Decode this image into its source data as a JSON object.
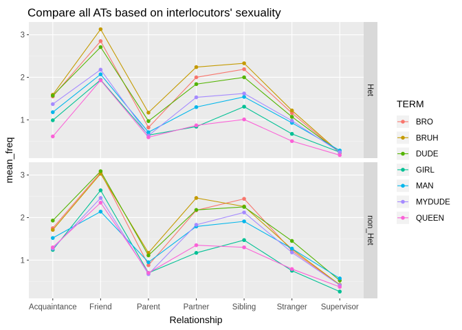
{
  "chart_data": {
    "type": "line",
    "title": "Compare all ATs based on interlocutors' sexuality",
    "xlabel": "Relationship",
    "ylabel": "mean_freq",
    "categories": [
      "Acquaintance",
      "Friend",
      "Parent",
      "Partner",
      "Sibling",
      "Stranger",
      "Supervisor"
    ],
    "yticks": [
      "1",
      "2",
      "3"
    ],
    "ylim": [
      0.1,
      3.3
    ],
    "grid": true,
    "legend": {
      "title": "TERM",
      "position": "right"
    },
    "series_names": [
      "BRO",
      "BRUH",
      "DUDE",
      "GIRL",
      "MAN",
      "MYDUDE",
      "QUEEN"
    ],
    "colors": [
      "#F8766D",
      "#C49A00",
      "#53B400",
      "#00C094",
      "#00B6EB",
      "#A58AFF",
      "#FB61D7"
    ],
    "panels": [
      {
        "label": "Het",
        "series": [
          {
            "name": "BRO",
            "values": [
              1.55,
              2.85,
              0.82,
              2.0,
              2.19,
              1.16,
              0.22
            ]
          },
          {
            "name": "BRUH",
            "values": [
              1.59,
              3.13,
              1.17,
              2.24,
              2.33,
              1.22,
              0.23
            ]
          },
          {
            "name": "DUDE",
            "values": [
              1.57,
              2.71,
              0.97,
              1.84,
              2.0,
              1.07,
              0.24
            ]
          },
          {
            "name": "GIRL",
            "values": [
              0.99,
              1.94,
              0.64,
              0.84,
              1.31,
              0.67,
              0.24
            ]
          },
          {
            "name": "MAN",
            "values": [
              1.18,
              2.07,
              0.71,
              1.3,
              1.54,
              0.93,
              0.28
            ]
          },
          {
            "name": "MYDUDE",
            "values": [
              1.37,
              2.18,
              0.63,
              1.53,
              1.62,
              0.98,
              0.24
            ]
          },
          {
            "name": "QUEEN",
            "values": [
              0.61,
              1.93,
              0.59,
              0.87,
              1.01,
              0.5,
              0.17
            ]
          }
        ]
      },
      {
        "label": "non_Het",
        "series": [
          {
            "name": "BRO",
            "values": [
              1.75,
              3.06,
              0.88,
              2.17,
              2.44,
              1.22,
              0.42
            ]
          },
          {
            "name": "BRUH",
            "values": [
              1.71,
              3.03,
              1.17,
              2.46,
              2.26,
              1.26,
              0.42
            ]
          },
          {
            "name": "DUDE",
            "values": [
              1.93,
              3.09,
              1.11,
              2.18,
              2.25,
              1.45,
              0.52
            ]
          },
          {
            "name": "GIRL",
            "values": [
              1.24,
              2.64,
              0.7,
              1.17,
              1.47,
              0.75,
              0.26
            ]
          },
          {
            "name": "MAN",
            "values": [
              1.52,
              2.14,
              0.95,
              1.79,
              1.91,
              1.27,
              0.57
            ]
          },
          {
            "name": "MYDUDE",
            "values": [
              1.27,
              2.46,
              0.67,
              1.83,
              2.12,
              1.18,
              0.41
            ]
          },
          {
            "name": "QUEEN",
            "values": [
              1.3,
              2.35,
              0.7,
              1.35,
              1.3,
              0.79,
              0.37
            ]
          }
        ]
      }
    ]
  }
}
